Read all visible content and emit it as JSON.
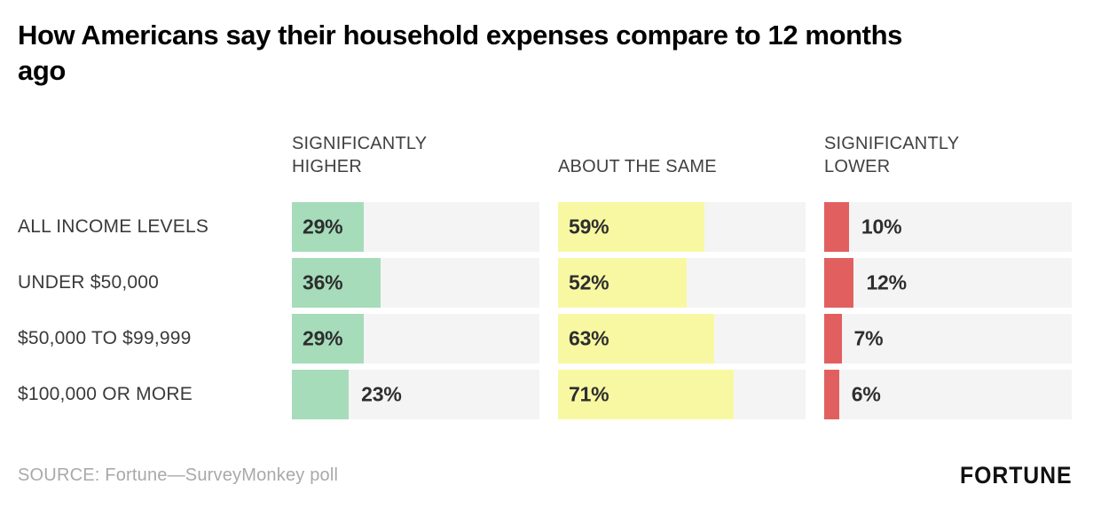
{
  "title": "How Americans say their household expenses compare to 12 months ago",
  "footer": {
    "source": "SOURCE: Fortune—SurveyMonkey poll",
    "logo": "FORTUNE"
  },
  "colors": {
    "higher": "#a6dcba",
    "same": "#f8f8a3",
    "lower": "#e25f5f",
    "track": "#f4f4f4"
  },
  "chart_data": {
    "type": "bar",
    "orientation": "horizontal",
    "title": "How Americans say their household expenses compare to 12 months ago",
    "categories": [
      "ALL INCOME LEVELS",
      "UNDER $50,000",
      "$50,000 TO $99,999",
      "$100,000 OR MORE"
    ],
    "series": [
      {
        "name": "SIGNIFICANTLY HIGHER",
        "values": [
          29,
          36,
          29,
          23
        ],
        "labels": [
          "29%",
          "36%",
          "29%",
          "23%"
        ]
      },
      {
        "name": "ABOUT THE SAME",
        "values": [
          59,
          52,
          63,
          71
        ],
        "labels": [
          "59%",
          "52%",
          "63%",
          "71%"
        ]
      },
      {
        "name": "SIGNIFICANTLY LOWER",
        "values": [
          10,
          12,
          7,
          6
        ],
        "labels": [
          "10%",
          "12%",
          "7%",
          "6%"
        ]
      }
    ],
    "xlim": [
      0,
      100
    ],
    "unit": "%",
    "grid": false,
    "legend_position": "column-headers"
  }
}
